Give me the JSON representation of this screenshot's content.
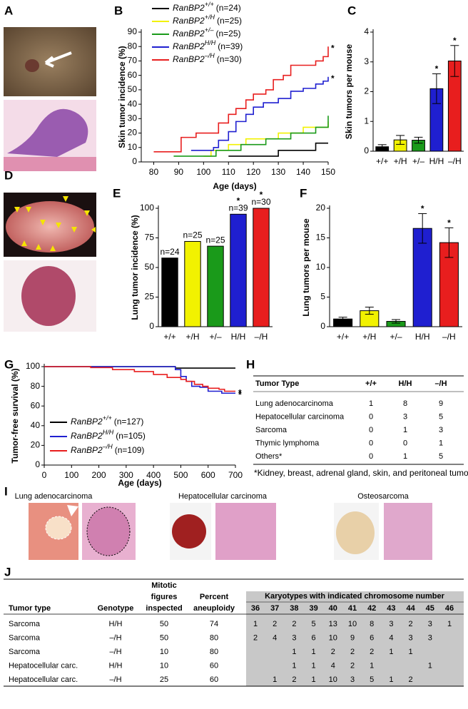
{
  "panel_labels": [
    "A",
    "B",
    "C",
    "D",
    "E",
    "F",
    "G",
    "H",
    "I",
    "J"
  ],
  "chart_data": [
    {
      "type": "line",
      "step": true,
      "xlabel": "Age (days)",
      "ylabel": "Skin tumor incidence (%)",
      "xlim": [
        75,
        150
      ],
      "xticks": [
        80,
        90,
        100,
        110,
        120,
        130,
        140,
        150
      ],
      "ylim": [
        0,
        90
      ],
      "yticks": [
        0,
        10,
        20,
        30,
        40,
        50,
        60,
        70,
        80,
        90
      ],
      "series": [
        {
          "name": "RanBP2",
          "genotype": "+/+",
          "count_label": "(n=24)",
          "color": "#000000",
          "x": [
            110,
            130,
            145,
            150
          ],
          "values": [
            4,
            8,
            13,
            13
          ]
        },
        {
          "name": "RanBP2",
          "genotype": "+/H",
          "count_label": "(n=25)",
          "color": "#f2f200",
          "x": [
            100,
            103,
            110,
            117,
            130,
            140,
            150
          ],
          "values": [
            4,
            8,
            12,
            16,
            20,
            24,
            28
          ]
        },
        {
          "name": "RanBP2",
          "genotype": "+/–",
          "count_label": "(n=25)",
          "color": "#1a9a1a",
          "x": [
            88,
            105,
            115,
            125,
            135,
            145,
            150
          ],
          "values": [
            4,
            8,
            12,
            16,
            20,
            24,
            32
          ]
        },
        {
          "name": "RanBP2",
          "genotype": "H/H",
          "count_label": "(n=39)",
          "color": "#1f1fd0",
          "marker_label": "*",
          "x": [
            95,
            104,
            106,
            110,
            113,
            117,
            120,
            124,
            130,
            135,
            140,
            145,
            148,
            150
          ],
          "values": [
            8,
            10,
            15,
            21,
            28,
            33,
            38,
            41,
            44,
            49,
            51,
            54,
            56,
            59
          ]
        },
        {
          "name": "RanBP2",
          "genotype": "–/H",
          "count_label": "(n=30)",
          "color": "#e81e1e",
          "marker_label": "*",
          "x": [
            80,
            91,
            97,
            106,
            110,
            113,
            117,
            120,
            125,
            128,
            132,
            135,
            145,
            148,
            150
          ],
          "values": [
            7,
            17,
            20,
            27,
            33,
            37,
            43,
            47,
            50,
            57,
            60,
            67,
            70,
            73,
            80
          ]
        }
      ]
    },
    {
      "type": "bar",
      "ylabel": "Skin tumors per mouse",
      "categories": [
        "+/+",
        "+/H",
        "+/–",
        "H/H",
        "–/H"
      ],
      "values": [
        0.15,
        0.38,
        0.37,
        2.1,
        3.03
      ],
      "errors": [
        0.07,
        0.15,
        0.1,
        0.5,
        0.52
      ],
      "colors": [
        "#000000",
        "#f2f200",
        "#1a9a1a",
        "#1f1fd0",
        "#e81e1e"
      ],
      "significance_marks": [
        null,
        null,
        null,
        "*",
        "*"
      ],
      "ylim": [
        0,
        4
      ],
      "yticks": [
        0,
        1,
        2,
        3,
        4
      ]
    },
    {
      "type": "bar",
      "ylabel": "Lung tumor incidence (%)",
      "categories": [
        "+/+",
        "+/H",
        "+/–",
        "H/H",
        "–/H"
      ],
      "values": [
        58,
        72,
        68,
        95,
        100
      ],
      "bar_labels": [
        "n=24",
        "n=25",
        "n=25",
        "n=39",
        "n=30"
      ],
      "colors": [
        "#000000",
        "#f2f200",
        "#1a9a1a",
        "#1f1fd0",
        "#e81e1e"
      ],
      "significance_marks": [
        null,
        null,
        null,
        "*",
        "*"
      ],
      "ylim": [
        0,
        100
      ],
      "yticks": [
        0,
        25,
        50,
        75,
        100
      ]
    },
    {
      "type": "bar",
      "ylabel": "Lung tumors per mouse",
      "categories": [
        "+/+",
        "+/H",
        "+/–",
        "H/H",
        "–/H"
      ],
      "values": [
        1.3,
        2.7,
        0.9,
        16.6,
        14.2
      ],
      "errors": [
        0.3,
        0.6,
        0.3,
        2.5,
        2.5
      ],
      "colors": [
        "#000000",
        "#f2f200",
        "#1a9a1a",
        "#1f1fd0",
        "#e81e1e"
      ],
      "significance_marks": [
        null,
        null,
        null,
        "*",
        "*"
      ],
      "ylim": [
        0,
        20
      ],
      "yticks": [
        0,
        5,
        10,
        15,
        20
      ]
    },
    {
      "type": "line",
      "step": true,
      "xlabel": "Age (days)",
      "ylabel": "Tumor-free survival (%)",
      "xlim": [
        0,
        700
      ],
      "xticks": [
        0,
        100,
        200,
        300,
        400,
        500,
        600,
        700
      ],
      "ylim": [
        0,
        100
      ],
      "yticks": [
        0,
        20,
        40,
        60,
        80,
        100
      ],
      "series": [
        {
          "name": "RanBP2",
          "genotype": "+/+",
          "count_label": "(n=127)",
          "color": "#000000",
          "x": [
            0,
            480,
            700
          ],
          "values": [
            100,
            98.5,
            98.5
          ]
        },
        {
          "name": "RanBP2",
          "genotype": "H/H",
          "count_label": "(n=105)",
          "color": "#1f1fd0",
          "marker_label": "*",
          "x": [
            0,
            480,
            500,
            520,
            540,
            570,
            600,
            620,
            650,
            700
          ],
          "values": [
            100,
            97,
            90,
            85,
            80,
            79,
            75,
            75,
            73,
            73
          ]
        },
        {
          "name": "RanBP2",
          "genotype": "–/H",
          "count_label": "(n=109)",
          "color": "#e81e1e",
          "marker_label": "*",
          "x": [
            0,
            160,
            170,
            250,
            330,
            400,
            450,
            500,
            520,
            550,
            580,
            600,
            640,
            660,
            700
          ],
          "values": [
            100,
            100,
            99,
            97,
            95,
            92,
            89,
            87,
            85,
            82,
            80,
            78,
            77,
            75,
            75
          ]
        }
      ]
    }
  ],
  "table_h": {
    "columns": [
      "Tumor Type",
      "+/+",
      "H/H",
      "–/H"
    ],
    "rows": [
      [
        "Lung adenocarcinoma",
        1,
        8,
        9
      ],
      [
        "Hepatocellular carcinoma",
        0,
        3,
        5
      ],
      [
        "Sarcoma",
        0,
        1,
        3
      ],
      [
        "Thymic lymphoma",
        0,
        0,
        1
      ],
      [
        "Others*",
        0,
        1,
        5
      ]
    ],
    "footnote": "*Kidney, breast, adrenal gland, skin, and peritoneal tumors"
  },
  "panel_i": {
    "captions": [
      "Lung adenocarcinoma",
      "Hepatocellular carcinoma",
      "Osteosarcoma"
    ]
  },
  "table_j": {
    "columns": [
      [
        "Tumor type"
      ],
      [
        "Genotype"
      ],
      [
        "Mitotic",
        "figures",
        "inspected"
      ],
      [
        "Percent",
        "aneuploidy"
      ]
    ],
    "karyotype_header": "Karyotypes with indicated chromosome number",
    "chromosome_numbers": [
      36,
      37,
      38,
      39,
      40,
      41,
      42,
      43,
      44,
      45,
      46
    ],
    "rows": [
      {
        "tumor_type": "Sarcoma",
        "genotype": "H/H",
        "mitotic": 50,
        "aneuploidy": 74,
        "karyotypes": [
          1,
          2,
          2,
          5,
          13,
          10,
          8,
          3,
          2,
          3,
          1
        ]
      },
      {
        "tumor_type": "Sarcoma",
        "genotype": "–/H",
        "mitotic": 50,
        "aneuploidy": 80,
        "karyotypes": [
          2,
          4,
          3,
          6,
          10,
          9,
          6,
          4,
          3,
          3,
          null
        ]
      },
      {
        "tumor_type": "Sarcoma",
        "genotype": "–/H",
        "mitotic": 10,
        "aneuploidy": 80,
        "karyotypes": [
          null,
          null,
          1,
          1,
          2,
          2,
          2,
          1,
          1,
          null,
          null
        ]
      },
      {
        "tumor_type": "Hepatocellular carc.",
        "genotype": "H/H",
        "mitotic": 10,
        "aneuploidy": 60,
        "karyotypes": [
          null,
          null,
          1,
          1,
          4,
          2,
          1,
          null,
          null,
          1,
          null
        ]
      },
      {
        "tumor_type": "Hepatocellular carc.",
        "genotype": "–/H",
        "mitotic": 25,
        "aneuploidy": 60,
        "karyotypes": [
          null,
          1,
          2,
          1,
          10,
          3,
          5,
          1,
          2,
          null,
          null
        ]
      }
    ]
  }
}
